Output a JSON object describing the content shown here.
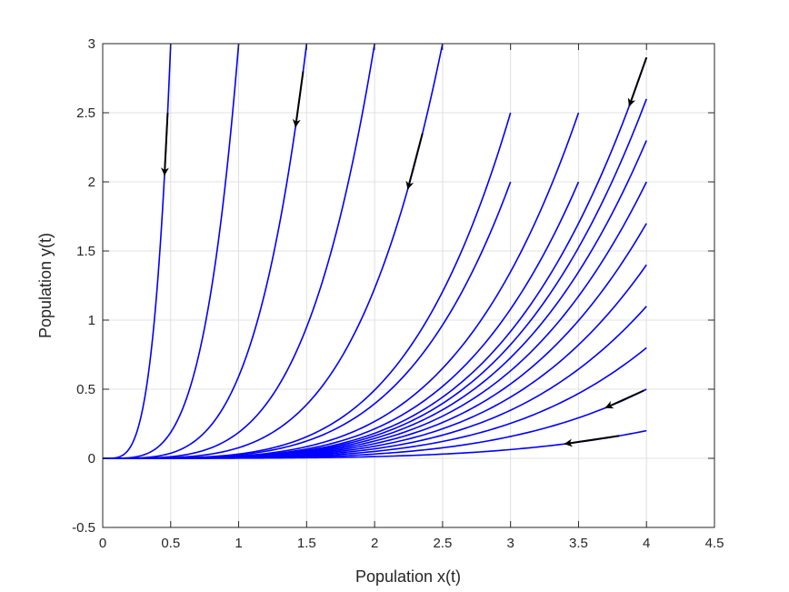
{
  "chart_data": {
    "type": "line",
    "title": "",
    "xlabel": "Population x(t)",
    "ylabel": "Population y(t)",
    "xlim": [
      0,
      4.5
    ],
    "ylim": [
      -0.5,
      3
    ],
    "xticks": [
      0,
      0.5,
      1,
      1.5,
      2,
      2.5,
      3,
      3.5,
      4,
      4.5
    ],
    "xtick_labels": [
      "0",
      "0.5",
      "1",
      "1.5",
      "2",
      "2.5",
      "3",
      "3.5",
      "4",
      "4.5"
    ],
    "yticks": [
      -0.5,
      0,
      0.5,
      1,
      1.5,
      2,
      2.5,
      3
    ],
    "ytick_labels": [
      "-0.5",
      "0",
      "0.5",
      "1",
      "1.5",
      "2",
      "2.5",
      "3"
    ],
    "grid": true,
    "line_color": "#0000ff",
    "arrow_color": "#000000",
    "grid_color": "#e0e0e0",
    "curve_exponent": 4,
    "series": [
      {
        "x_end": 0.5,
        "y_end": 3
      },
      {
        "x_end": 1.0,
        "y_end": 3
      },
      {
        "x_end": 1.5,
        "y_end": 3
      },
      {
        "x_end": 2.0,
        "y_end": 3
      },
      {
        "x_end": 2.5,
        "y_end": 3
      },
      {
        "x_end": 3.0,
        "y_end": 2.5
      },
      {
        "x_end": 3.0,
        "y_end": 2.0
      },
      {
        "x_end": 3.5,
        "y_end": 2.5
      },
      {
        "x_end": 3.5,
        "y_end": 2.0
      },
      {
        "x_end": 4.0,
        "y_end": 2.9
      },
      {
        "x_end": 4.0,
        "y_end": 2.6
      },
      {
        "x_end": 4.0,
        "y_end": 2.3
      },
      {
        "x_end": 4.0,
        "y_end": 2.0
      },
      {
        "x_end": 4.0,
        "y_end": 1.7
      },
      {
        "x_end": 4.0,
        "y_end": 1.4
      },
      {
        "x_end": 4.0,
        "y_end": 1.1
      },
      {
        "x_end": 4.0,
        "y_end": 0.8
      },
      {
        "x_end": 4.0,
        "y_end": 0.5
      },
      {
        "x_end": 4.0,
        "y_end": 0.2
      }
    ],
    "arrows": [
      {
        "series": 0,
        "from_y": 2.5,
        "to_y": 2.05
      },
      {
        "series": 2,
        "from_y": 2.8,
        "to_y": 2.4
      },
      {
        "series": 4,
        "from_y": 2.35,
        "to_y": 1.95
      },
      {
        "series": 9,
        "from_y": 2.9,
        "to_y": 2.55
      },
      {
        "series": 17,
        "from_x": 3.98,
        "to_x": 3.7
      },
      {
        "series": 18,
        "from_x": 3.8,
        "to_x": 3.4
      }
    ]
  }
}
